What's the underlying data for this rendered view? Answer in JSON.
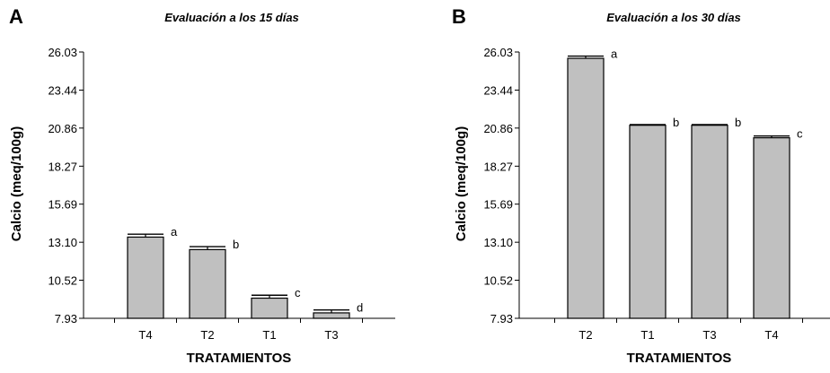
{
  "chart_data": [
    {
      "panel": "A",
      "type": "bar",
      "title": "Evaluación a los 15 días",
      "xlabel": "TRATAMIENTOS",
      "ylabel": "Calcio (meq/100g)",
      "ylim": [
        7.93,
        26.03
      ],
      "yticks": [
        "26.03",
        "23.44",
        "20.86",
        "18.27",
        "15.69",
        "13.10",
        "10.52",
        "7.93"
      ],
      "categories": [
        "T4",
        "T2",
        "T1",
        "T3"
      ],
      "values": [
        13.45,
        12.6,
        9.3,
        8.3
      ],
      "errors": [
        0.2,
        0.2,
        0.2,
        0.2
      ],
      "letters": [
        "a",
        "b",
        "c",
        "d"
      ],
      "bar_color": "#c0c0c0"
    },
    {
      "panel": "B",
      "type": "bar",
      "title": "Evaluación a los 30 días",
      "xlabel": "TRATAMIENTOS",
      "ylabel": "Calcio (meq/100g)",
      "ylim": [
        7.93,
        26.03
      ],
      "yticks": [
        "26.03",
        "23.44",
        "20.86",
        "18.27",
        "15.69",
        "13.10",
        "10.52",
        "7.93"
      ],
      "categories": [
        "T2",
        "T1",
        "T3",
        "T4"
      ],
      "values": [
        25.6,
        21.05,
        21.05,
        20.2
      ],
      "errors": [
        0.15,
        0.05,
        0.05,
        0.12
      ],
      "letters": [
        "a",
        "b",
        "b",
        "c"
      ],
      "bar_color": "#c0c0c0"
    }
  ]
}
